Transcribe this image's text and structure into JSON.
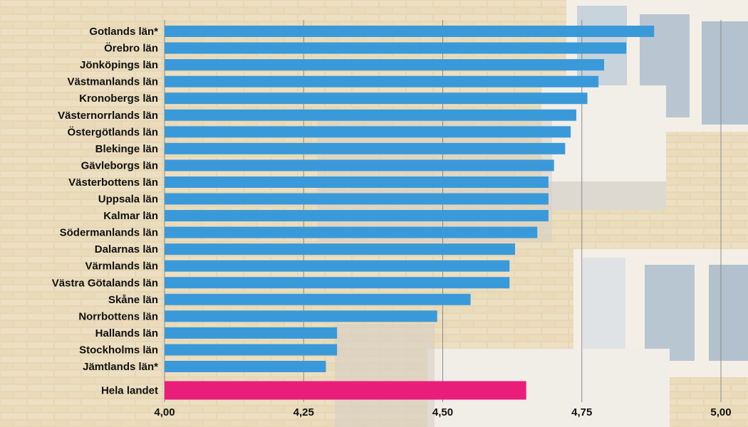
{
  "colors": {
    "bar": "#3a9ad9",
    "highlight": "#e91e7b",
    "grid": "#8a8a8a",
    "background": "#e9dcc0"
  },
  "chart_data": {
    "type": "bar",
    "orientation": "horizontal",
    "title": "",
    "xlabel": "",
    "ylabel": "",
    "xlim": [
      4.0,
      5.0
    ],
    "ticks": [
      {
        "value": 4.0,
        "label": "4,00"
      },
      {
        "value": 4.25,
        "label": "4,25"
      },
      {
        "value": 4.5,
        "label": "4,50"
      },
      {
        "value": 4.75,
        "label": "4,75"
      },
      {
        "value": 5.0,
        "label": "5,00"
      }
    ],
    "grid": true,
    "categories": [
      "Gotlands län*",
      "Örebro län",
      "Jönköpings län",
      "Västmanlands län",
      "Kronobergs län",
      "Västernorrlands län",
      "Östergötlands län",
      "Blekinge län",
      "Gävleborgs län",
      "Västerbottens län",
      "Uppsala län",
      "Kalmar län",
      "Södermanlands län",
      "Dalarnas län",
      "Värmlands län",
      "Västra Götalands län",
      "Skåne län",
      "Norrbottens län",
      "Hallands län",
      "Stockholms län",
      "Jämtlands län*",
      "Hela landet"
    ],
    "values": [
      4.88,
      4.83,
      4.79,
      4.78,
      4.76,
      4.74,
      4.73,
      4.72,
      4.7,
      4.69,
      4.69,
      4.69,
      4.67,
      4.63,
      4.62,
      4.62,
      4.55,
      4.49,
      4.31,
      4.31,
      4.29,
      4.65
    ],
    "highlight_index": 21
  }
}
